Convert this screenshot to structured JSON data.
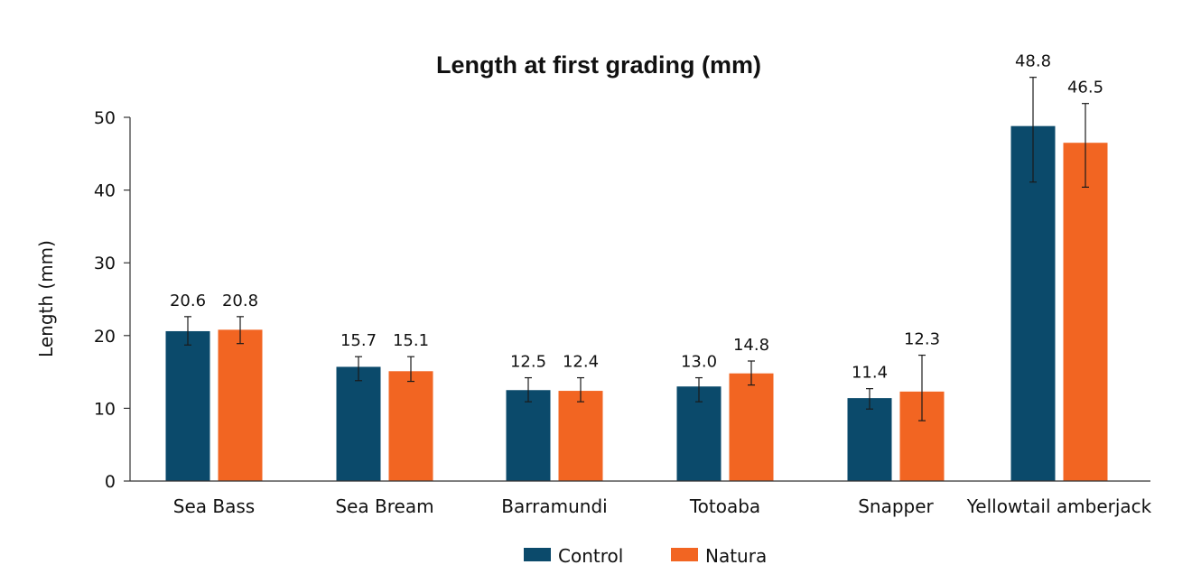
{
  "chart_data": {
    "type": "bar",
    "title": "Length at first grading (mm)",
    "xlabel": "",
    "ylabel": "Length (mm)",
    "ylim": [
      0,
      50
    ],
    "yticks": [
      0,
      10,
      20,
      30,
      40,
      50
    ],
    "grid": false,
    "legend_position": "bottom",
    "categories": [
      "Sea Bass",
      "Sea Bream",
      "Barramundi",
      "Totoaba",
      "Snapper",
      "Yellowtail amberjack"
    ],
    "series": [
      {
        "name": "Control",
        "color": "#0b4a6b",
        "values": [
          20.6,
          15.7,
          12.5,
          13.0,
          11.4,
          48.8
        ],
        "value_labels": [
          "20.6",
          "15.7",
          "12.5",
          "13.0",
          "11.4",
          "48.8"
        ],
        "error_low": [
          18.7,
          13.8,
          10.9,
          10.9,
          9.9,
          41.1
        ],
        "error_high": [
          22.6,
          17.1,
          14.2,
          14.2,
          12.7,
          55.5
        ]
      },
      {
        "name": "Natura",
        "color": "#f26522",
        "values": [
          20.8,
          15.1,
          12.4,
          14.8,
          12.3,
          46.5
        ],
        "value_labels": [
          "20.8",
          "15.1",
          "12.4",
          "14.8",
          "12.3",
          "46.5"
        ],
        "error_low": [
          18.9,
          13.7,
          10.9,
          13.2,
          8.3,
          40.4
        ],
        "error_high": [
          22.6,
          17.1,
          14.2,
          16.5,
          17.3,
          51.9
        ]
      }
    ]
  }
}
